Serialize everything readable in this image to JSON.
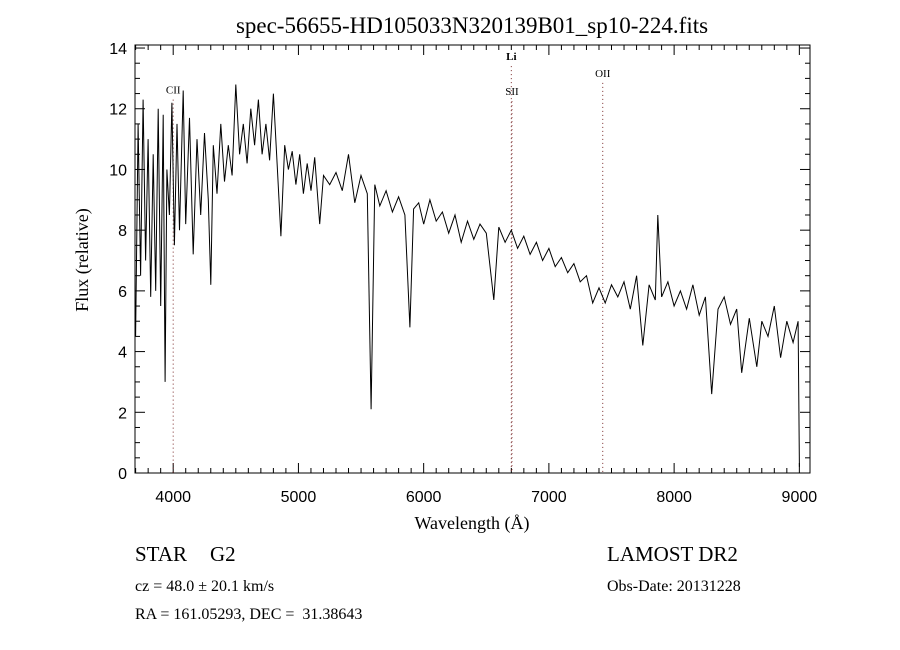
{
  "chart_data": {
    "type": "line",
    "title": "spec-56655-HD105033N320139B01_sp10-224.fits",
    "xlabel": "Wavelength (Å)",
    "ylabel": "Flux (relative)",
    "xlim": [
      3695,
      9085
    ],
    "ylim": [
      0,
      14.1
    ],
    "xticks": [
      4000,
      5000,
      6000,
      7000,
      8000,
      9000
    ],
    "yticks": [
      0,
      2,
      4,
      6,
      8,
      10,
      12,
      14
    ],
    "grid": false,
    "line_color": "#000000",
    "marker_color": "#7a2a2a",
    "line_markers": [
      {
        "label": "CII",
        "x": 4000,
        "bold": false,
        "label_y": 12.5
      },
      {
        "label": "Li",
        "x": 6700,
        "bold": true,
        "label_y": 13.6
      },
      {
        "label": "SII",
        "x": 6705,
        "bold": false,
        "label_y": 12.45
      },
      {
        "label": "OII",
        "x": 7430,
        "bold": false,
        "label_y": 13.05
      }
    ],
    "series": [
      {
        "name": "flux",
        "points": [
          [
            3700,
            4.5
          ],
          [
            3720,
            11.5
          ],
          [
            3740,
            6.5
          ],
          [
            3760,
            12.3
          ],
          [
            3780,
            7
          ],
          [
            3800,
            11
          ],
          [
            3820,
            5.8
          ],
          [
            3840,
            10.5
          ],
          [
            3860,
            6
          ],
          [
            3880,
            12
          ],
          [
            3900,
            5.5
          ],
          [
            3920,
            11.8
          ],
          [
            3935,
            3.0
          ],
          [
            3950,
            10
          ],
          [
            3970,
            8.5
          ],
          [
            3990,
            12.2
          ],
          [
            4010,
            7.5
          ],
          [
            4030,
            11.5
          ],
          [
            4050,
            8
          ],
          [
            4080,
            12.6
          ],
          [
            4100,
            8.2
          ],
          [
            4130,
            11.7
          ],
          [
            4160,
            7.2
          ],
          [
            4190,
            11
          ],
          [
            4220,
            8.5
          ],
          [
            4250,
            11.2
          ],
          [
            4280,
            9
          ],
          [
            4300,
            6.2
          ],
          [
            4320,
            10.8
          ],
          [
            4350,
            9.2
          ],
          [
            4380,
            11.5
          ],
          [
            4410,
            9.6
          ],
          [
            4440,
            10.8
          ],
          [
            4470,
            9.8
          ],
          [
            4500,
            12.8
          ],
          [
            4530,
            10.5
          ],
          [
            4560,
            11.5
          ],
          [
            4590,
            10.2
          ],
          [
            4620,
            12.0
          ],
          [
            4650,
            10.8
          ],
          [
            4680,
            12.3
          ],
          [
            4710,
            10.5
          ],
          [
            4740,
            11.5
          ],
          [
            4770,
            10.3
          ],
          [
            4800,
            12.5
          ],
          [
            4830,
            10.2
          ],
          [
            4860,
            7.8
          ],
          [
            4890,
            10.8
          ],
          [
            4920,
            10
          ],
          [
            4950,
            10.6
          ],
          [
            4980,
            9.5
          ],
          [
            5010,
            10.5
          ],
          [
            5040,
            9.2
          ],
          [
            5070,
            10.2
          ],
          [
            5100,
            9.3
          ],
          [
            5130,
            10.4
          ],
          [
            5170,
            8.2
          ],
          [
            5200,
            9.8
          ],
          [
            5250,
            9.5
          ],
          [
            5300,
            9.9
          ],
          [
            5350,
            9.3
          ],
          [
            5400,
            10.5
          ],
          [
            5450,
            8.9
          ],
          [
            5500,
            9.8
          ],
          [
            5550,
            9.2
          ],
          [
            5580,
            2.1
          ],
          [
            5610,
            9.5
          ],
          [
            5650,
            8.8
          ],
          [
            5700,
            9.3
          ],
          [
            5750,
            8.6
          ],
          [
            5800,
            9.1
          ],
          [
            5850,
            8.5
          ],
          [
            5890,
            4.8
          ],
          [
            5920,
            8.7
          ],
          [
            5960,
            8.9
          ],
          [
            6000,
            8.2
          ],
          [
            6050,
            9.0
          ],
          [
            6100,
            8.3
          ],
          [
            6150,
            8.6
          ],
          [
            6200,
            7.9
          ],
          [
            6250,
            8.5
          ],
          [
            6300,
            7.6
          ],
          [
            6350,
            8.3
          ],
          [
            6400,
            7.7
          ],
          [
            6450,
            8.2
          ],
          [
            6500,
            7.9
          ],
          [
            6560,
            5.7
          ],
          [
            6600,
            8.1
          ],
          [
            6650,
            7.6
          ],
          [
            6700,
            8.0
          ],
          [
            6750,
            7.4
          ],
          [
            6800,
            7.8
          ],
          [
            6850,
            7.2
          ],
          [
            6900,
            7.6
          ],
          [
            6950,
            7.0
          ],
          [
            7000,
            7.4
          ],
          [
            7050,
            6.8
          ],
          [
            7100,
            7.1
          ],
          [
            7150,
            6.6
          ],
          [
            7200,
            6.9
          ],
          [
            7250,
            6.3
          ],
          [
            7300,
            6.5
          ],
          [
            7350,
            5.6
          ],
          [
            7400,
            6.1
          ],
          [
            7450,
            5.6
          ],
          [
            7500,
            6.2
          ],
          [
            7550,
            5.8
          ],
          [
            7600,
            6.3
          ],
          [
            7650,
            5.4
          ],
          [
            7700,
            6.5
          ],
          [
            7750,
            4.2
          ],
          [
            7800,
            6.2
          ],
          [
            7850,
            5.7
          ],
          [
            7870,
            8.5
          ],
          [
            7900,
            5.8
          ],
          [
            7950,
            6.3
          ],
          [
            8000,
            5.5
          ],
          [
            8050,
            6.0
          ],
          [
            8100,
            5.4
          ],
          [
            8150,
            6.2
          ],
          [
            8200,
            5.2
          ],
          [
            8250,
            5.8
          ],
          [
            8300,
            2.6
          ],
          [
            8350,
            5.4
          ],
          [
            8400,
            5.8
          ],
          [
            8450,
            4.9
          ],
          [
            8500,
            5.4
          ],
          [
            8540,
            3.3
          ],
          [
            8600,
            5.1
          ],
          [
            8660,
            3.5
          ],
          [
            8700,
            5.0
          ],
          [
            8750,
            4.5
          ],
          [
            8800,
            5.5
          ],
          [
            8850,
            3.8
          ],
          [
            8900,
            5.0
          ],
          [
            8950,
            4.3
          ],
          [
            8990,
            5.0
          ],
          [
            9000,
            0.2
          ]
        ]
      }
    ]
  },
  "info": {
    "object_class": "STAR",
    "subclass": "G2",
    "redshift": "cz = 48.0 ± 20.1 km/s",
    "coords": "RA = 161.05293, DEC =  31.38643",
    "survey": "LAMOST DR2",
    "obs_date": "Obs-Date: 20131228"
  }
}
